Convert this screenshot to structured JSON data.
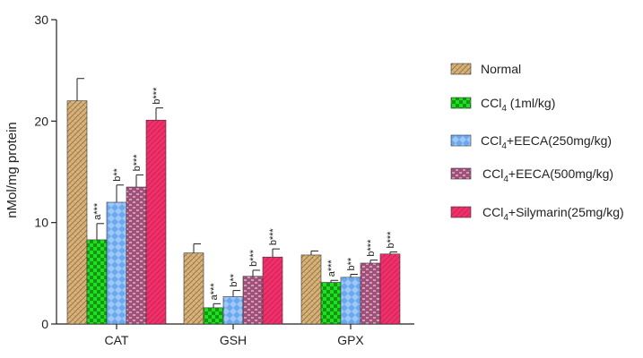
{
  "chart_data": {
    "type": "bar",
    "ylabel": "nMol/mg protein",
    "ylim": [
      0,
      30
    ],
    "yticks": [
      0,
      10,
      20,
      30
    ],
    "categories": [
      "CAT",
      "GSH",
      "GPX"
    ],
    "series": [
      {
        "name_parts": [
          "Normal",
          "",
          ""
        ],
        "pattern": "normal",
        "color": "#d9b47a",
        "values": [
          22.0,
          7.0,
          6.8
        ],
        "errors": [
          2.2,
          0.9,
          0.4
        ],
        "labels": [
          "",
          "",
          ""
        ]
      },
      {
        "name_parts": [
          "CCl",
          "4",
          " (1ml/kg)"
        ],
        "pattern": "ccl4",
        "color": "#22dd22",
        "values": [
          8.3,
          1.6,
          4.1
        ],
        "errors": [
          1.6,
          0.4,
          0.2
        ],
        "labels": [
          "a***",
          "a***",
          "a***"
        ]
      },
      {
        "name_parts": [
          "CCl",
          "4",
          "+EECA(250mg/kg)"
        ],
        "pattern": "eeca250",
        "color": "#6aa8f0",
        "values": [
          12.0,
          2.7,
          4.6
        ],
        "errors": [
          1.7,
          0.6,
          0.3
        ],
        "labels": [
          "b**",
          "b**",
          "b**"
        ]
      },
      {
        "name_parts": [
          "CCl",
          "4",
          "+EECA(500mg/kg)"
        ],
        "pattern": "eeca500",
        "color": "#a2507a",
        "values": [
          13.5,
          4.7,
          6.0
        ],
        "errors": [
          1.2,
          0.6,
          0.3
        ],
        "labels": [
          "b***",
          "b***",
          "b***"
        ]
      },
      {
        "name_parts": [
          "CCl",
          "4",
          "+Silymarin(25mg/kg)"
        ],
        "pattern": "sily",
        "color": "#f0306a",
        "values": [
          20.1,
          6.6,
          6.9
        ],
        "errors": [
          1.2,
          0.8,
          0.2
        ],
        "labels": [
          "b***",
          "b***",
          "b***"
        ]
      }
    ],
    "legend_position": "right",
    "grid": false
  }
}
